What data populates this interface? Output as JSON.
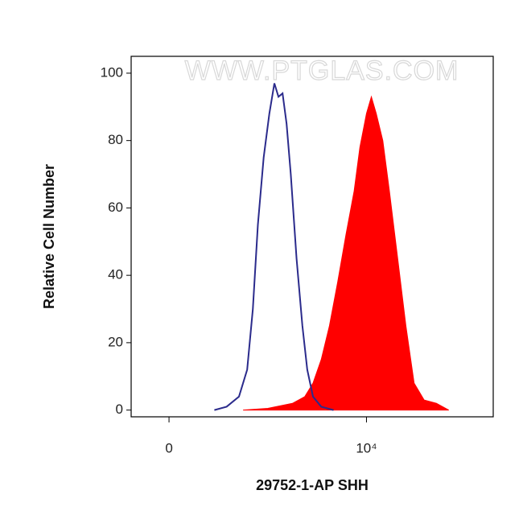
{
  "chart_data": {
    "type": "histogram-overlay",
    "xlabel": "29752-1-AP SHH",
    "ylabel": "Relative Cell Number",
    "watermark": "WWW.PTGLAS.COM",
    "xscale": "biexponential",
    "xlim": [
      -120,
      300000
    ],
    "xticks": [
      0,
      {
        "value": 10000,
        "label": "10⁴"
      }
    ],
    "ylim": [
      -2,
      105
    ],
    "yticks": [
      0,
      20,
      40,
      60,
      80,
      100
    ],
    "series": [
      {
        "style": "area",
        "color": "#ff0000",
        "x": [
          358,
          705,
          1370,
          1910,
          2380,
          2970,
          3700,
          4620,
          5760,
          7180,
          8380,
          10000,
          11400,
          13000,
          15500,
          18500,
          23100,
          28800,
          35900,
          46900,
          65300,
          90900
        ],
        "values": [
          0,
          0.5,
          2,
          4,
          8,
          15,
          25,
          38,
          52,
          65,
          78,
          88,
          93,
          88,
          80,
          65,
          45,
          25,
          8,
          3,
          2,
          0
        ]
      },
      {
        "style": "line",
        "color": "#2b2b8c",
        "x": [
          154,
          224,
          319,
          401,
          469,
          538,
          630,
          735,
          842,
          940,
          1050,
          1170,
          1310,
          1530,
          1790,
          2040,
          2380,
          2970,
          4130
        ],
        "values": [
          0,
          1,
          4,
          12,
          30,
          55,
          75,
          88,
          97,
          93,
          94,
          85,
          70,
          45,
          25,
          12,
          4,
          1,
          0
        ]
      }
    ]
  }
}
